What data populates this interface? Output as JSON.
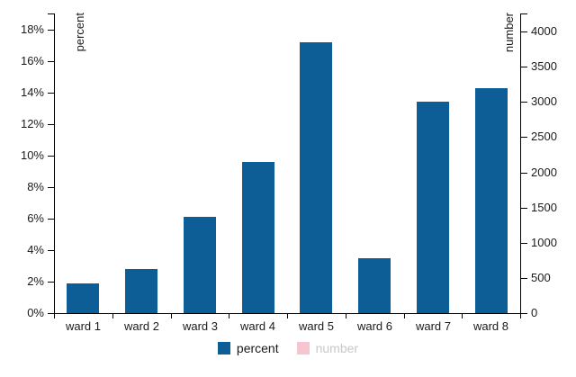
{
  "chart_data": {
    "type": "bar",
    "categories": [
      "ward 1",
      "ward 2",
      "ward 3",
      "ward 4",
      "ward 5",
      "ward 6",
      "ward 7",
      "ward 8"
    ],
    "series": [
      {
        "name": "percent",
        "axis": "left",
        "color": "#0d5e96",
        "visible": true,
        "values": [
          1.9,
          2.8,
          6.1,
          9.6,
          17.2,
          3.5,
          13.4,
          14.3
        ]
      },
      {
        "name": "number",
        "axis": "right",
        "color": "#f5c5d0",
        "visible": false
      }
    ],
    "left_axis": {
      "label": "percent",
      "min": 0,
      "max": 18,
      "tick_step": 2,
      "ticks": [
        "0%",
        "2%",
        "4%",
        "6%",
        "8%",
        "10%",
        "12%",
        "14%",
        "16%",
        "18%"
      ]
    },
    "right_axis": {
      "label": "number",
      "min": 0,
      "max": 4000,
      "tick_step": 500,
      "ticks": [
        "0",
        "500",
        "1000",
        "1500",
        "2000",
        "2500",
        "3000",
        "3500",
        "4000"
      ]
    },
    "legend": {
      "position": "bottom",
      "items": [
        {
          "label": "percent",
          "swatch": "#0d5e96",
          "enabled": true
        },
        {
          "label": "number",
          "swatch": "#f5c5d0",
          "enabled": false
        }
      ]
    },
    "grid": false
  }
}
